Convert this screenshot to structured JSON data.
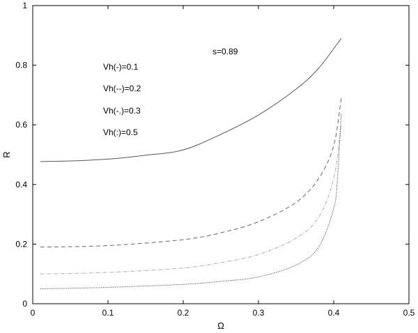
{
  "chart_data": {
    "type": "line",
    "title": "",
    "xlabel": "Ω",
    "ylabel": "R",
    "xlim": [
      0,
      0.5
    ],
    "ylim": [
      0,
      1
    ],
    "xticks": [
      "0",
      "0.1",
      "0.2",
      "0.3",
      "0.4",
      "0.5"
    ],
    "yticks": [
      "0",
      "0.2",
      "0.4",
      "0.6",
      "0.8",
      "1"
    ],
    "grid": false,
    "annotations": [
      "s=0.89",
      "Vh(-)=0.1",
      "Vh(--)=0.2",
      "Vh(-.)=0.3",
      "Vh(:)=0.5"
    ],
    "series": [
      {
        "style": "solid",
        "color": "#555555",
        "x": [
          0.01,
          0.05,
          0.1,
          0.15,
          0.2,
          0.25,
          0.3,
          0.35,
          0.38,
          0.41
        ],
        "y": [
          0.477,
          0.479,
          0.485,
          0.498,
          0.516,
          0.568,
          0.633,
          0.72,
          0.79,
          0.89
        ]
      },
      {
        "style": "dashed",
        "color": "#666666",
        "x": [
          0.01,
          0.1,
          0.2,
          0.25,
          0.3,
          0.35,
          0.38,
          0.4,
          0.41
        ],
        "y": [
          0.19,
          0.195,
          0.215,
          0.238,
          0.275,
          0.34,
          0.42,
          0.53,
          0.69
        ]
      },
      {
        "style": "dash-dot",
        "color": "#aaaaaa",
        "x": [
          0.01,
          0.1,
          0.2,
          0.25,
          0.3,
          0.35,
          0.38,
          0.4,
          0.41
        ],
        "y": [
          0.1,
          0.105,
          0.12,
          0.138,
          0.165,
          0.22,
          0.29,
          0.42,
          0.6
        ]
      },
      {
        "style": "dotted",
        "color": "#333333",
        "x": [
          0.01,
          0.1,
          0.2,
          0.25,
          0.3,
          0.35,
          0.38,
          0.4,
          0.405,
          0.41
        ],
        "y": [
          0.05,
          0.055,
          0.065,
          0.075,
          0.09,
          0.13,
          0.19,
          0.32,
          0.42,
          0.64
        ]
      }
    ]
  }
}
